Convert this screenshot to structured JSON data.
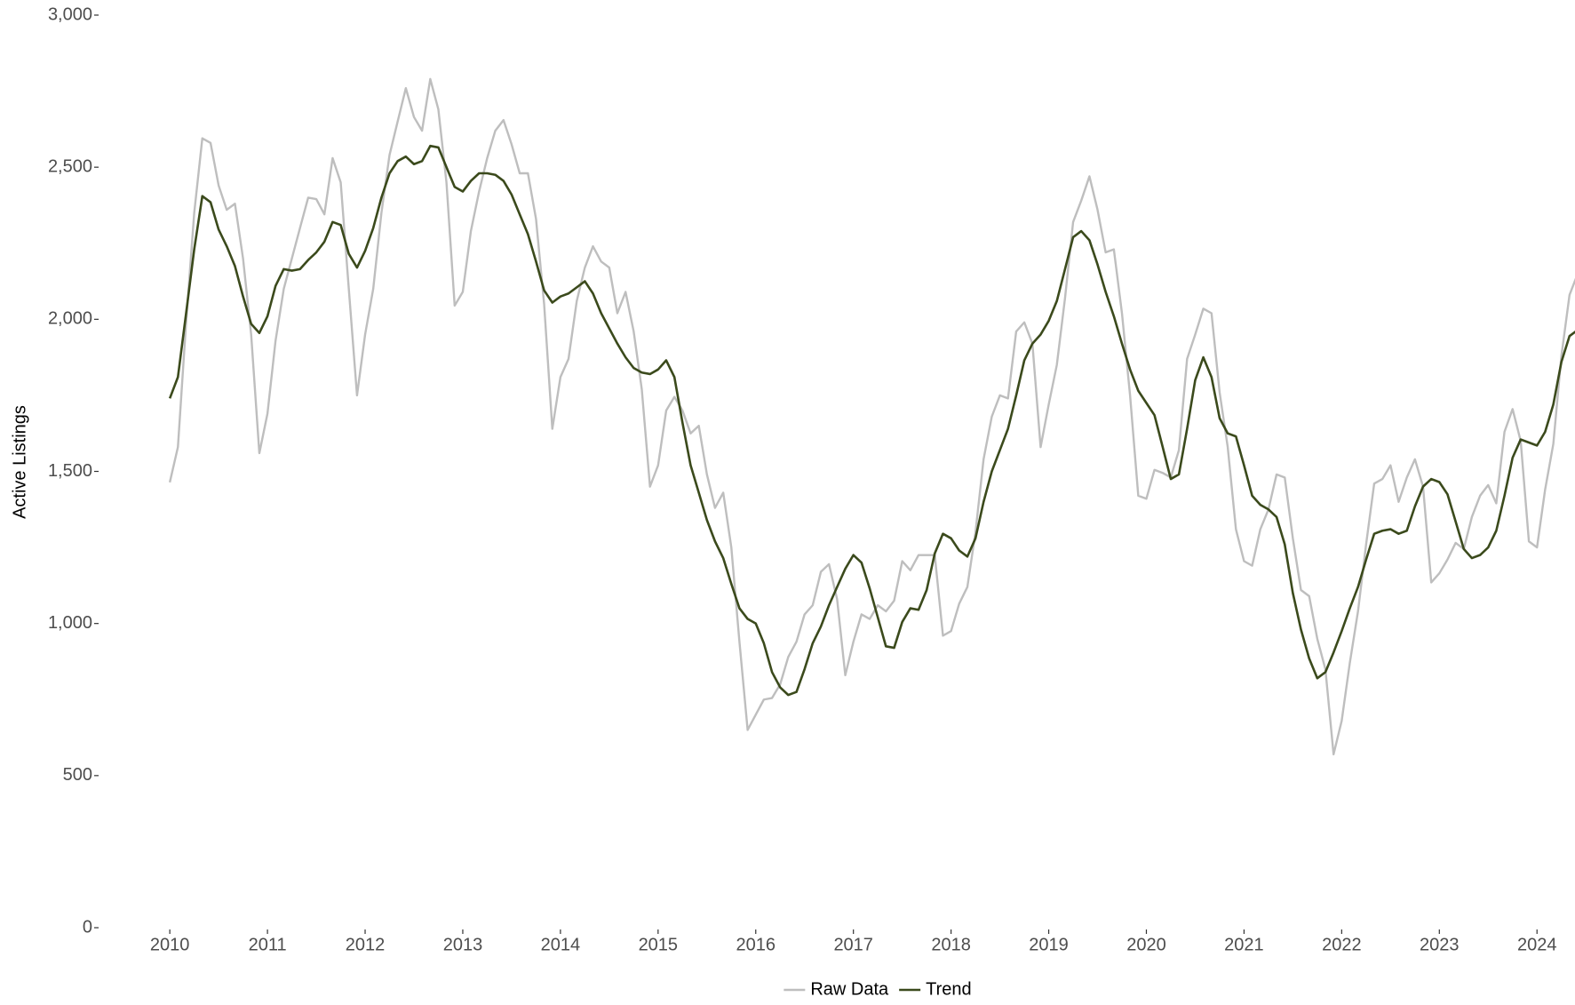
{
  "chart_data": {
    "type": "line",
    "y_label": "Active Listings",
    "x": [
      2010,
      2010.083,
      2010.167,
      2010.25,
      2010.333,
      2010.417,
      2010.5,
      2010.583,
      2010.667,
      2010.75,
      2010.833,
      2010.917,
      2011,
      2011.083,
      2011.167,
      2011.25,
      2011.333,
      2011.417,
      2011.5,
      2011.583,
      2011.667,
      2011.75,
      2011.833,
      2011.917,
      2012,
      2012.083,
      2012.167,
      2012.25,
      2012.333,
      2012.417,
      2012.5,
      2012.583,
      2012.667,
      2012.75,
      2012.833,
      2012.917,
      2013,
      2013.083,
      2013.167,
      2013.25,
      2013.333,
      2013.417,
      2013.5,
      2013.583,
      2013.667,
      2013.75,
      2013.833,
      2013.917,
      2014,
      2014.083,
      2014.167,
      2014.25,
      2014.333,
      2014.417,
      2014.5,
      2014.583,
      2014.667,
      2014.75,
      2014.833,
      2014.917,
      2015,
      2015.083,
      2015.167,
      2015.25,
      2015.333,
      2015.417,
      2015.5,
      2015.583,
      2015.667,
      2015.75,
      2015.833,
      2015.917,
      2016,
      2016.083,
      2016.167,
      2016.25,
      2016.333,
      2016.417,
      2016.5,
      2016.583,
      2016.667,
      2016.75,
      2016.833,
      2016.917,
      2017,
      2017.083,
      2017.167,
      2017.25,
      2017.333,
      2017.417,
      2017.5,
      2017.583,
      2017.667,
      2017.75,
      2017.833,
      2017.917,
      2018,
      2018.083,
      2018.167,
      2018.25,
      2018.333,
      2018.417,
      2018.5,
      2018.583,
      2018.667,
      2018.75,
      2018.833,
      2018.917,
      2019,
      2019.083,
      2019.167,
      2019.25,
      2019.333,
      2019.417,
      2019.5,
      2019.583,
      2019.667,
      2019.75,
      2019.833,
      2019.917,
      2020,
      2020.083,
      2020.167,
      2020.25,
      2020.333,
      2020.417,
      2020.5,
      2020.583,
      2020.667,
      2020.75,
      2020.833,
      2020.917,
      2021,
      2021.083,
      2021.167,
      2021.25,
      2021.333,
      2021.417,
      2021.5,
      2021.583,
      2021.667,
      2021.75,
      2021.833,
      2021.917,
      2022,
      2022.083,
      2022.167,
      2022.25,
      2022.333,
      2022.417,
      2022.5,
      2022.583,
      2022.667,
      2022.75,
      2022.833,
      2022.917,
      2023,
      2023.083,
      2023.167,
      2023.25,
      2023.333,
      2023.417,
      2023.5,
      2023.583,
      2023.667,
      2023.75,
      2023.833,
      2023.917,
      2024,
      2024.083,
      2024.167,
      2024.25,
      2024.333,
      2024.417
    ],
    "series": [
      {
        "name": "Raw Data",
        "color": "#bebebe",
        "values": [
          1464,
          1580,
          1990,
          2350,
          2595,
          2580,
          2440,
          2360,
          2380,
          2200,
          1950,
          1560,
          1690,
          1930,
          2100,
          2200,
          2300,
          2400,
          2395,
          2345,
          2530,
          2450,
          2100,
          1750,
          1950,
          2100,
          2350,
          2540,
          2650,
          2760,
          2665,
          2620,
          2790,
          2690,
          2450,
          2045,
          2090,
          2290,
          2420,
          2530,
          2620,
          2655,
          2575,
          2480,
          2480,
          2330,
          2050,
          1640,
          1810,
          1870,
          2060,
          2170,
          2240,
          2190,
          2170,
          2020,
          2090,
          1960,
          1770,
          1450,
          1520,
          1700,
          1745,
          1700,
          1625,
          1650,
          1490,
          1380,
          1430,
          1250,
          940,
          650,
          700,
          750,
          755,
          800,
          890,
          940,
          1030,
          1060,
          1170,
          1195,
          1080,
          830,
          940,
          1030,
          1015,
          1060,
          1040,
          1075,
          1205,
          1175,
          1225,
          1225,
          1225,
          960,
          975,
          1065,
          1120,
          1300,
          1540,
          1680,
          1750,
          1740,
          1960,
          1990,
          1920,
          1580,
          1720,
          1850,
          2070,
          2320,
          2390,
          2470,
          2360,
          2220,
          2230,
          2020,
          1750,
          1420,
          1410,
          1505,
          1495,
          1480,
          1570,
          1870,
          1950,
          2035,
          2020,
          1760,
          1580,
          1310,
          1205,
          1190,
          1310,
          1375,
          1490,
          1480,
          1280,
          1110,
          1090,
          950,
          850,
          570,
          680,
          870,
          1040,
          1260,
          1460,
          1475,
          1520,
          1400,
          1480,
          1540,
          1450,
          1135,
          1165,
          1210,
          1265,
          1245,
          1350,
          1420,
          1455,
          1395,
          1630,
          1705,
          1600,
          1270,
          1250,
          1440,
          1590,
          1880,
          2080,
          2150
        ]
      },
      {
        "name": "Trend",
        "color": "#3b4a1c",
        "values": [
          1740,
          1810,
          2020,
          2230,
          2405,
          2385,
          2295,
          2240,
          2175,
          2075,
          1985,
          1955,
          2010,
          2110,
          2165,
          2160,
          2165,
          2195,
          2220,
          2255,
          2320,
          2310,
          2215,
          2170,
          2225,
          2300,
          2400,
          2480,
          2520,
          2535,
          2510,
          2520,
          2570,
          2565,
          2500,
          2435,
          2420,
          2455,
          2480,
          2480,
          2475,
          2455,
          2410,
          2345,
          2280,
          2190,
          2095,
          2055,
          2075,
          2085,
          2105,
          2125,
          2085,
          2020,
          1970,
          1920,
          1875,
          1840,
          1825,
          1820,
          1835,
          1865,
          1810,
          1660,
          1520,
          1430,
          1340,
          1270,
          1215,
          1130,
          1050,
          1015,
          1000,
          935,
          840,
          790,
          765,
          775,
          850,
          935,
          990,
          1060,
          1120,
          1180,
          1225,
          1200,
          1115,
          1020,
          925,
          920,
          1005,
          1050,
          1045,
          1110,
          1230,
          1295,
          1280,
          1240,
          1220,
          1280,
          1400,
          1500,
          1570,
          1640,
          1750,
          1865,
          1920,
          1950,
          1995,
          2060,
          2165,
          2270,
          2290,
          2260,
          2180,
          2090,
          2010,
          1920,
          1835,
          1765,
          1725,
          1685,
          1580,
          1475,
          1490,
          1640,
          1800,
          1875,
          1810,
          1675,
          1625,
          1615,
          1520,
          1420,
          1390,
          1375,
          1350,
          1260,
          1100,
          980,
          885,
          820,
          840,
          905,
          975,
          1050,
          1120,
          1210,
          1295,
          1305,
          1310,
          1295,
          1305,
          1385,
          1450,
          1475,
          1465,
          1425,
          1335,
          1245,
          1215,
          1225,
          1250,
          1305,
          1420,
          1545,
          1605,
          1595,
          1585,
          1630,
          1720,
          1860,
          1945,
          1965
        ]
      }
    ],
    "xlim": [
      2009.28,
      2024.38
    ],
    "xticks": [
      2010,
      2011,
      2012,
      2013,
      2014,
      2015,
      2016,
      2017,
      2018,
      2019,
      2020,
      2021,
      2022,
      2023,
      2024
    ],
    "ylim": [
      0,
      3000
    ],
    "yticks": [
      0,
      500,
      {
        "value": 1000,
        "label": "1,000"
      },
      {
        "value": 1500,
        "label": "1,500"
      },
      {
        "value": 2000,
        "label": "2,000"
      },
      {
        "value": 2500,
        "label": "2,500"
      },
      {
        "value": 3000,
        "label": "3,000"
      }
    ],
    "grid": false,
    "legend": "bottom"
  }
}
